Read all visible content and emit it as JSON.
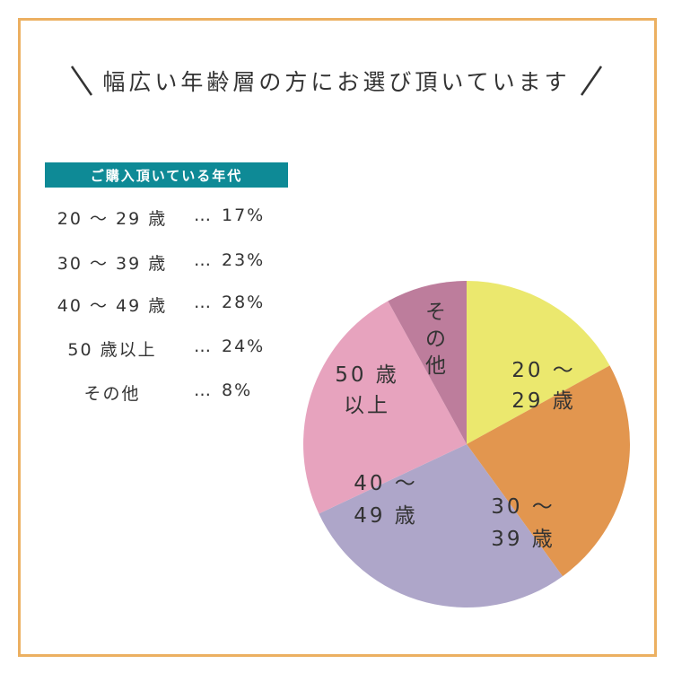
{
  "headline": "幅広い年齢層の方にお選び頂いています",
  "legend": {
    "title": "ご購入頂いている年代",
    "rows": [
      {
        "category": "20 〜 29 歳",
        "dots": "…",
        "value": "17%"
      },
      {
        "category": "30 〜 39 歳",
        "dots": "…",
        "value": "23%"
      },
      {
        "category": "40 〜 49 歳",
        "dots": "…",
        "value": "28%"
      },
      {
        "category": "50 歳以上",
        "dots": "…",
        "value": "24%"
      },
      {
        "category": "その他",
        "dots": "…",
        "value": "8%"
      }
    ]
  },
  "chart_data": {
    "type": "pie",
    "categories": [
      "20〜29歳",
      "30〜39歳",
      "40〜49歳",
      "50歳以上",
      "その他"
    ],
    "values": [
      17,
      23,
      28,
      24,
      8
    ],
    "unit": "%",
    "slice_labels": [
      {
        "lines": [
          "20 〜",
          "29 歳"
        ],
        "orientation": "horizontal"
      },
      {
        "lines": [
          "30 〜",
          "39 歳"
        ],
        "orientation": "horizontal"
      },
      {
        "lines": [
          "40 〜",
          "49 歳"
        ],
        "orientation": "horizontal"
      },
      {
        "lines": [
          "50 歳",
          "以上"
        ],
        "orientation": "horizontal"
      },
      {
        "lines": [
          "その",
          "他"
        ],
        "orientation": "vertical"
      }
    ],
    "colors": [
      "#ebe86e",
      "#e2964f",
      "#aea6c9",
      "#e7a3be",
      "#bd7d9c"
    ],
    "start": "12 o'clock",
    "direction": "clockwise"
  },
  "colors": {
    "frame": "#ecb061",
    "legend_header_bg": "#0e8a96",
    "legend_header_text": "#ffffff",
    "text": "#333333"
  }
}
